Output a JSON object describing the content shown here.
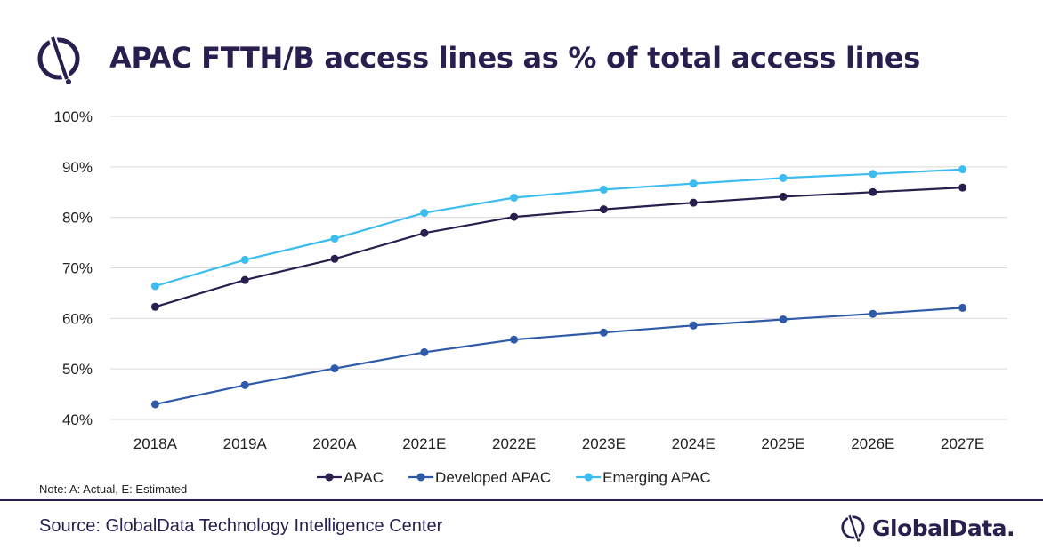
{
  "header": {
    "title": "APAC FTTH/B access lines as % of total access lines"
  },
  "note": "Note: A: Actual, E: Estimated",
  "footer": {
    "source": "Source: GlobalData Technology Intelligence Center",
    "brand": "GlobalData."
  },
  "colors": {
    "apac": "#2a1e4e",
    "developed": "#2e5aa8",
    "emerging": "#3dbcf0",
    "text": "#2a1e4e",
    "grid": "#d9d9d9"
  },
  "icons": {
    "header_logo": "globaldata-logo-icon",
    "footer_logo": "globaldata-logo-icon"
  },
  "chart_data": {
    "type": "line",
    "title": "APAC FTTH/B access lines as % of total access lines",
    "xlabel": "",
    "ylabel": "",
    "categories": [
      "2018A",
      "2019A",
      "2020A",
      "2021E",
      "2022E",
      "2023E",
      "2024E",
      "2025E",
      "2026E",
      "2027E"
    ],
    "ylim": [
      40,
      100
    ],
    "yticks": [
      "40%",
      "50%",
      "60%",
      "70%",
      "80%",
      "90%",
      "100%"
    ],
    "grid": true,
    "legend_position": "bottom",
    "series": [
      {
        "name": "APAC",
        "color": "#2a1e4e",
        "values": [
          62.3,
          67.6,
          71.8,
          76.9,
          80.1,
          81.6,
          82.9,
          84.1,
          85.0,
          85.9
        ]
      },
      {
        "name": "Developed APAC",
        "color": "#2e5aa8",
        "values": [
          43.0,
          46.8,
          50.1,
          53.3,
          55.8,
          57.2,
          58.6,
          59.8,
          60.9,
          62.1
        ]
      },
      {
        "name": "Emerging APAC",
        "color": "#3dbcf0",
        "values": [
          66.4,
          71.6,
          75.8,
          80.9,
          83.9,
          85.5,
          86.7,
          87.8,
          88.6,
          89.5
        ]
      }
    ]
  }
}
